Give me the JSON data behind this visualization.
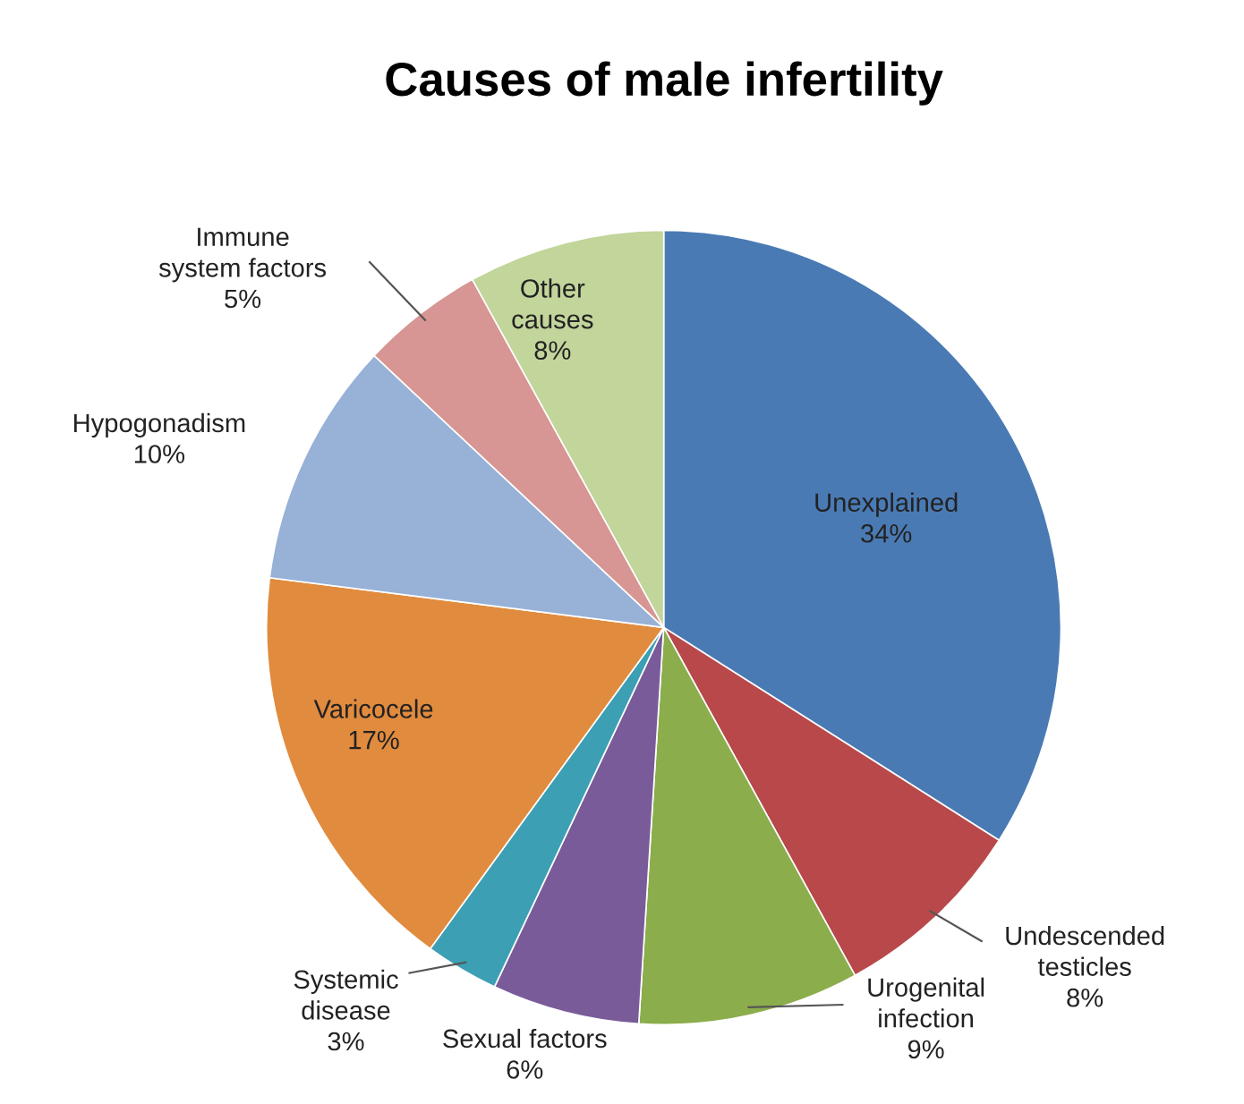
{
  "chart_data": {
    "type": "pie",
    "title": "Causes of male infertility",
    "categories": [
      "Unexplained",
      "Undescended\ntesticles",
      "Urogenital\ninfection",
      "Sexual factors",
      "Systemic\ndisease",
      "Varicocele",
      "Hypogonadism",
      "Immune\nsystem factors",
      "Other\ncauses"
    ],
    "values": [
      34,
      8,
      9,
      6,
      3,
      17,
      10,
      5,
      8
    ],
    "value_labels": [
      "34%",
      "8%",
      "9%",
      "6%",
      "3%",
      "17%",
      "10%",
      "5%",
      "8%"
    ],
    "colors": [
      "#4a7ab4",
      "#b8484a",
      "#8bad4b",
      "#7a5b99",
      "#3c9fb4",
      "#e18b3e",
      "#97b1d7",
      "#d79593",
      "#c2d59b"
    ],
    "legend": false
  }
}
